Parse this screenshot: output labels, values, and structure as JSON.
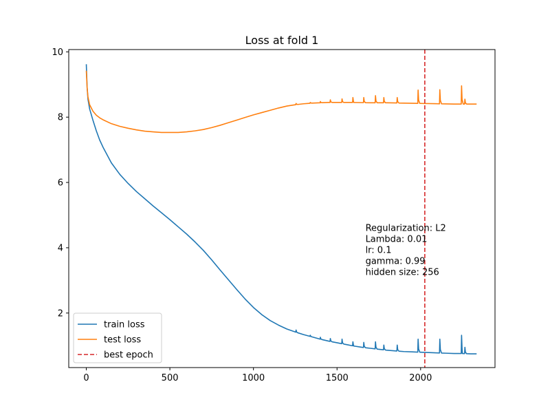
{
  "chart_data": {
    "type": "line",
    "title": "Loss at fold 1",
    "xlabel": "",
    "ylabel": "",
    "xlim": [
      -105,
      2445
    ],
    "ylim": [
      0.33,
      10.07
    ],
    "xticks": [
      0,
      500,
      1000,
      1500,
      2000
    ],
    "yticks": [
      2,
      4,
      6,
      8,
      10
    ],
    "grid": false,
    "legend_position": "lower-left",
    "best_epoch": 2025,
    "best_epoch_label": "best epoch",
    "best_epoch_color": "#d62728",
    "annotation": {
      "x": 1670,
      "y": 4.6,
      "lines": [
        "Regularization: L2",
        "Lambda: 0.01",
        "lr: 0.1",
        "gamma: 0.99",
        "hidden size: 256"
      ]
    },
    "series": [
      {
        "name": "train loss",
        "color": "#1f77b4",
        "points": [
          [
            0,
            9.62
          ],
          [
            5,
            8.9
          ],
          [
            10,
            8.55
          ],
          [
            20,
            8.25
          ],
          [
            40,
            7.9
          ],
          [
            60,
            7.58
          ],
          [
            80,
            7.3
          ],
          [
            100,
            7.08
          ],
          [
            150,
            6.6
          ],
          [
            200,
            6.25
          ],
          [
            250,
            5.97
          ],
          [
            300,
            5.72
          ],
          [
            350,
            5.5
          ],
          [
            400,
            5.28
          ],
          [
            450,
            5.07
          ],
          [
            500,
            4.86
          ],
          [
            550,
            4.64
          ],
          [
            600,
            4.42
          ],
          [
            650,
            4.18
          ],
          [
            700,
            3.92
          ],
          [
            750,
            3.63
          ],
          [
            800,
            3.32
          ],
          [
            850,
            3.02
          ],
          [
            900,
            2.72
          ],
          [
            950,
            2.43
          ],
          [
            1000,
            2.17
          ],
          [
            1050,
            1.95
          ],
          [
            1100,
            1.77
          ],
          [
            1150,
            1.63
          ],
          [
            1200,
            1.51
          ],
          [
            1250,
            1.42
          ],
          [
            1300,
            1.34
          ],
          [
            1350,
            1.27
          ],
          [
            1400,
            1.2
          ],
          [
            1450,
            1.14
          ],
          [
            1500,
            1.09
          ],
          [
            1550,
            1.04
          ],
          [
            1600,
            0.99
          ],
          [
            1650,
            0.95
          ],
          [
            1700,
            0.92
          ],
          [
            1750,
            0.89
          ],
          [
            1800,
            0.86
          ],
          [
            1850,
            0.84
          ],
          [
            1900,
            0.82
          ],
          [
            1950,
            0.81
          ],
          [
            2000,
            0.8
          ],
          [
            2050,
            0.79
          ],
          [
            2100,
            0.78
          ],
          [
            2150,
            0.77
          ],
          [
            2200,
            0.76
          ],
          [
            2250,
            0.76
          ],
          [
            2300,
            0.75
          ],
          [
            2335,
            0.75
          ]
        ],
        "spikes": [
          [
            1255,
            1.48
          ],
          [
            1340,
            1.32
          ],
          [
            1400,
            1.26
          ],
          [
            1460,
            1.22
          ],
          [
            1530,
            1.2
          ],
          [
            1595,
            1.12
          ],
          [
            1660,
            1.1
          ],
          [
            1730,
            1.12
          ],
          [
            1780,
            1.02
          ],
          [
            1860,
            1.02
          ],
          [
            1985,
            1.2
          ],
          [
            2115,
            1.2
          ],
          [
            2245,
            1.32
          ],
          [
            2265,
            0.95
          ]
        ]
      },
      {
        "name": "test loss",
        "color": "#ff7f0e",
        "points": [
          [
            0,
            9.42
          ],
          [
            5,
            8.9
          ],
          [
            10,
            8.62
          ],
          [
            20,
            8.38
          ],
          [
            40,
            8.18
          ],
          [
            60,
            8.06
          ],
          [
            80,
            7.98
          ],
          [
            100,
            7.92
          ],
          [
            150,
            7.8
          ],
          [
            200,
            7.72
          ],
          [
            250,
            7.66
          ],
          [
            300,
            7.61
          ],
          [
            350,
            7.57
          ],
          [
            400,
            7.55
          ],
          [
            450,
            7.53
          ],
          [
            500,
            7.53
          ],
          [
            550,
            7.53
          ],
          [
            600,
            7.55
          ],
          [
            650,
            7.58
          ],
          [
            700,
            7.62
          ],
          [
            750,
            7.68
          ],
          [
            800,
            7.75
          ],
          [
            850,
            7.83
          ],
          [
            900,
            7.91
          ],
          [
            950,
            7.99
          ],
          [
            1000,
            8.07
          ],
          [
            1050,
            8.14
          ],
          [
            1100,
            8.21
          ],
          [
            1150,
            8.28
          ],
          [
            1200,
            8.34
          ],
          [
            1250,
            8.38
          ],
          [
            1300,
            8.41
          ],
          [
            1350,
            8.43
          ],
          [
            1400,
            8.44
          ],
          [
            1450,
            8.45
          ],
          [
            1500,
            8.45
          ],
          [
            1600,
            8.45
          ],
          [
            1700,
            8.44
          ],
          [
            1800,
            8.44
          ],
          [
            1900,
            8.43
          ],
          [
            2000,
            8.42
          ],
          [
            2100,
            8.41
          ],
          [
            2200,
            8.4
          ],
          [
            2300,
            8.4
          ],
          [
            2335,
            8.4
          ]
        ],
        "spikes": [
          [
            1255,
            8.42
          ],
          [
            1340,
            8.45
          ],
          [
            1400,
            8.48
          ],
          [
            1460,
            8.53
          ],
          [
            1530,
            8.56
          ],
          [
            1595,
            8.6
          ],
          [
            1660,
            8.6
          ],
          [
            1730,
            8.66
          ],
          [
            1780,
            8.6
          ],
          [
            1860,
            8.6
          ],
          [
            1985,
            8.83
          ],
          [
            2115,
            8.84
          ],
          [
            2245,
            8.96
          ],
          [
            2265,
            8.55
          ]
        ]
      }
    ]
  }
}
